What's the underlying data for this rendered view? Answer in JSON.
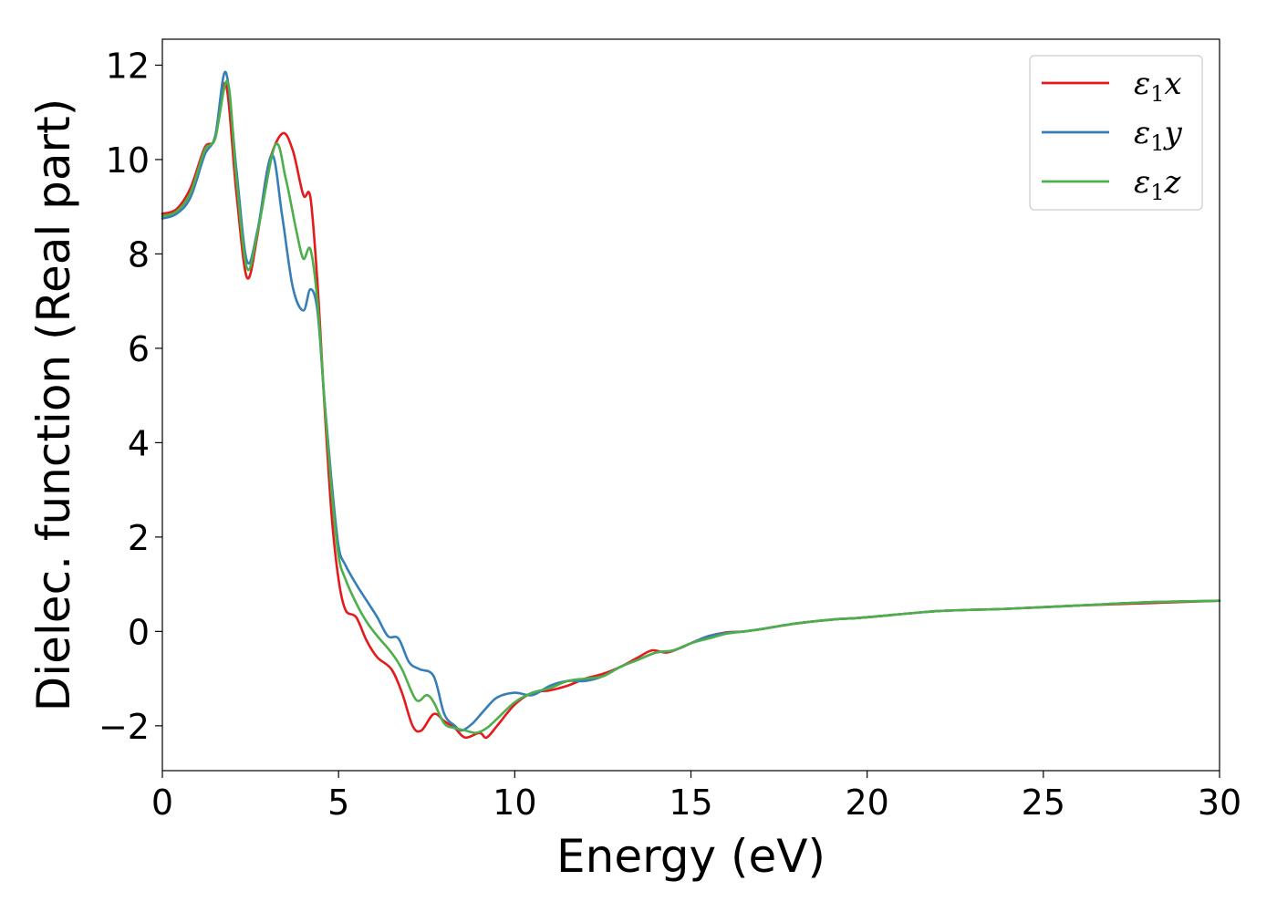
{
  "chart_data": {
    "type": "line",
    "xlabel": "Energy (eV)",
    "ylabel": "Dielec. function (Real part)",
    "xlim": [
      0,
      30
    ],
    "ylim": [
      -2.95,
      12.55
    ],
    "xticks": [
      0,
      5,
      10,
      15,
      20,
      25,
      30
    ],
    "yticks": [
      -2,
      0,
      2,
      4,
      6,
      8,
      10,
      12
    ],
    "ytick_labels": [
      "−2",
      "0",
      "2",
      "4",
      "6",
      "8",
      "10",
      "12"
    ],
    "grid": false,
    "legend_position": "top-right",
    "series": [
      {
        "name": "ε1x",
        "legend": {
          "base": "ε",
          "sub": "1",
          "comp": "x"
        },
        "color": "#e41a1c",
        "x": [
          0,
          0.4,
          0.8,
          1.2,
          1.5,
          1.8,
          2.1,
          2.4,
          2.7,
          3.0,
          3.4,
          3.7,
          4.0,
          4.2,
          4.4,
          4.6,
          4.8,
          5.0,
          5.2,
          5.5,
          5.8,
          6.1,
          6.5,
          6.8,
          7.1,
          7.35,
          7.7,
          8.0,
          8.3,
          8.6,
          9.0,
          9.2,
          9.5,
          10.0,
          10.5,
          11.0,
          11.5,
          12.0,
          12.5,
          13.0,
          13.5,
          13.9,
          14.3,
          14.7,
          15.0,
          15.5,
          16.0,
          16.5,
          17.0,
          18.0,
          19.0,
          20.0,
          22.0,
          24.0,
          26.0,
          28.0,
          30.0
        ],
        "y": [
          8.85,
          8.95,
          9.4,
          10.25,
          10.45,
          11.6,
          9.3,
          7.5,
          8.4,
          9.85,
          10.55,
          10.2,
          9.25,
          9.2,
          7.4,
          4.8,
          2.5,
          1.1,
          0.45,
          0.3,
          -0.2,
          -0.55,
          -0.8,
          -1.3,
          -2.0,
          -2.1,
          -1.75,
          -1.9,
          -2.05,
          -2.25,
          -2.15,
          -2.25,
          -2.0,
          -1.55,
          -1.3,
          -1.25,
          -1.15,
          -1.0,
          -0.9,
          -0.75,
          -0.55,
          -0.4,
          -0.45,
          -0.35,
          -0.25,
          -0.1,
          -0.02,
          0.0,
          0.05,
          0.17,
          0.25,
          0.3,
          0.43,
          0.48,
          0.55,
          0.6,
          0.65
        ]
      },
      {
        "name": "ε1y",
        "legend": {
          "base": "ε",
          "sub": "1",
          "comp": "y"
        },
        "color": "#377eb8",
        "x": [
          0,
          0.4,
          0.8,
          1.2,
          1.5,
          1.8,
          2.1,
          2.4,
          2.7,
          3.1,
          3.4,
          3.7,
          4.0,
          4.2,
          4.4,
          4.6,
          4.8,
          5.0,
          5.2,
          5.5,
          5.8,
          6.1,
          6.4,
          6.7,
          7.0,
          7.3,
          7.7,
          8.0,
          8.3,
          8.5,
          8.8,
          9.1,
          9.5,
          10.0,
          10.5,
          11.0,
          11.5,
          12.0,
          12.5,
          13.0,
          13.5,
          14.0,
          14.5,
          15.0,
          15.5,
          16.0,
          16.5,
          17.0,
          18.0,
          19.0,
          20.0,
          22.0,
          24.0,
          26.0,
          28.0,
          30.0
        ],
        "y": [
          8.75,
          8.85,
          9.2,
          10.1,
          10.5,
          11.85,
          9.8,
          7.85,
          8.5,
          10.1,
          8.8,
          7.3,
          6.8,
          7.25,
          6.8,
          4.9,
          3.2,
          1.8,
          1.4,
          1.0,
          0.65,
          0.3,
          -0.1,
          -0.15,
          -0.65,
          -0.8,
          -0.95,
          -1.75,
          -2.0,
          -2.1,
          -1.95,
          -1.7,
          -1.4,
          -1.3,
          -1.35,
          -1.15,
          -1.05,
          -1.05,
          -0.95,
          -0.75,
          -0.6,
          -0.45,
          -0.4,
          -0.25,
          -0.1,
          -0.03,
          0.0,
          0.05,
          0.17,
          0.25,
          0.3,
          0.43,
          0.48,
          0.55,
          0.62,
          0.65
        ]
      },
      {
        "name": "ε1z",
        "legend": {
          "base": "ε",
          "sub": "1",
          "comp": "z"
        },
        "color": "#4daf4a",
        "x": [
          0,
          0.4,
          0.8,
          1.2,
          1.5,
          1.85,
          2.1,
          2.4,
          2.7,
          3.2,
          3.5,
          3.8,
          4.0,
          4.2,
          4.4,
          4.6,
          4.8,
          5.0,
          5.2,
          5.5,
          5.8,
          6.1,
          6.5,
          6.8,
          7.2,
          7.5,
          7.7,
          8.0,
          8.3,
          8.6,
          8.9,
          9.2,
          9.5,
          10.0,
          10.5,
          11.0,
          11.5,
          12.0,
          12.5,
          13.0,
          13.5,
          14.0,
          14.5,
          15.0,
          15.5,
          16.0,
          16.5,
          17.0,
          18.0,
          19.0,
          20.0,
          22.0,
          24.0,
          26.0,
          28.0,
          30.0
        ],
        "y": [
          8.8,
          8.9,
          9.3,
          10.2,
          10.45,
          11.65,
          9.6,
          7.7,
          8.45,
          10.3,
          9.6,
          8.5,
          7.9,
          8.1,
          7.0,
          4.9,
          3.0,
          1.6,
          1.1,
          0.6,
          0.2,
          -0.1,
          -0.45,
          -0.8,
          -1.45,
          -1.35,
          -1.5,
          -1.95,
          -2.05,
          -2.1,
          -2.15,
          -2.05,
          -1.85,
          -1.5,
          -1.3,
          -1.2,
          -1.05,
          -1.0,
          -0.95,
          -0.75,
          -0.6,
          -0.45,
          -0.4,
          -0.25,
          -0.15,
          -0.05,
          0.0,
          0.05,
          0.17,
          0.25,
          0.3,
          0.43,
          0.48,
          0.55,
          0.62,
          0.65
        ]
      }
    ]
  }
}
